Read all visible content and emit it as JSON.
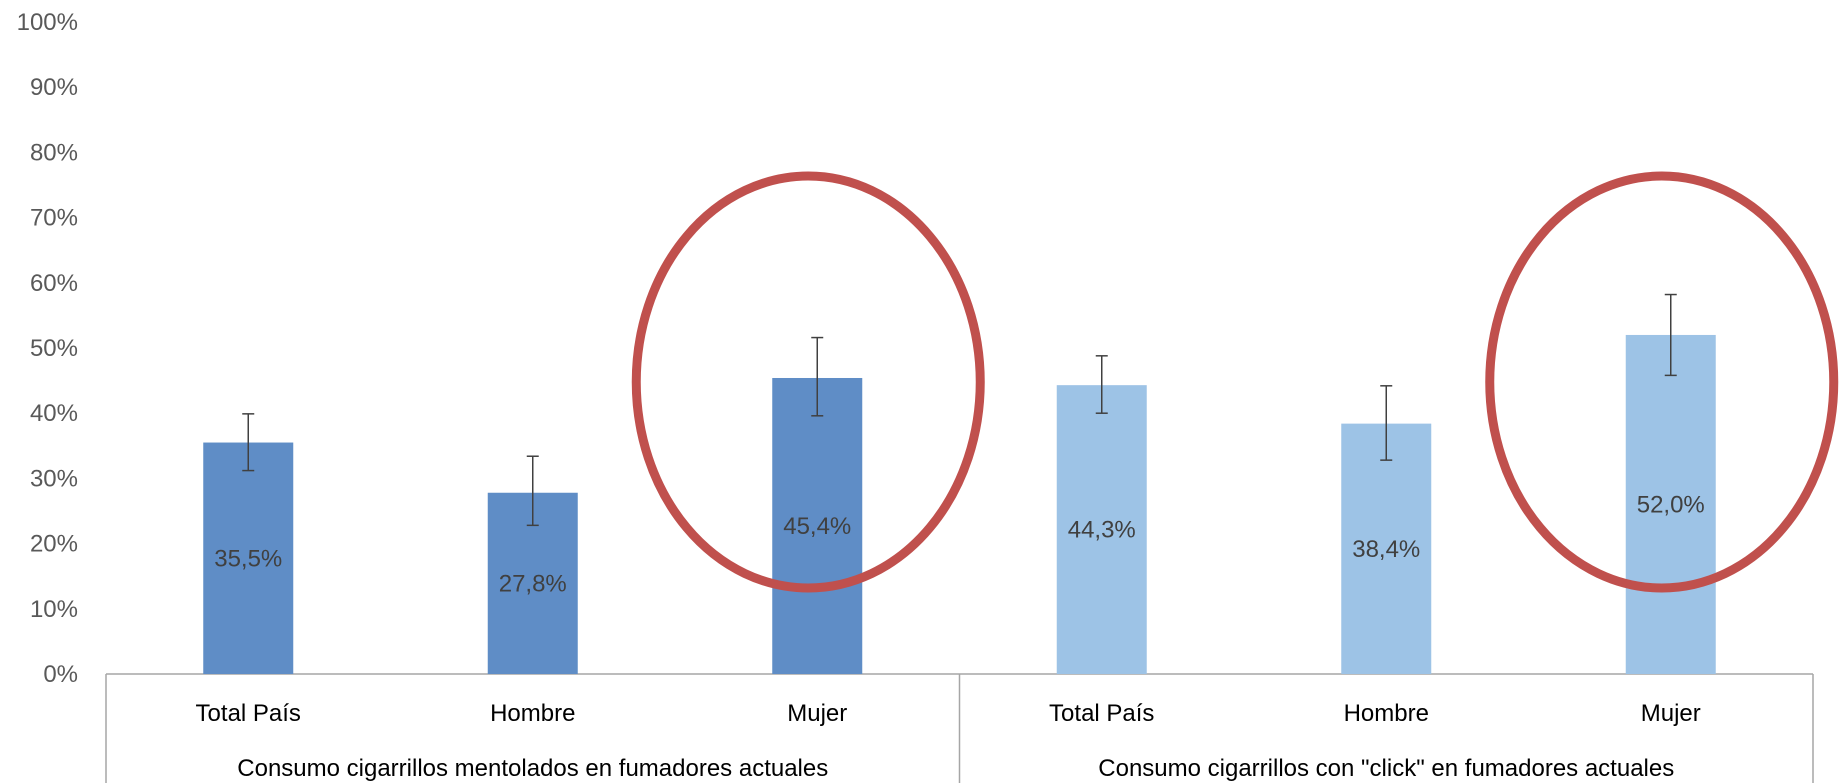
{
  "chart_data": {
    "type": "bar",
    "ylim": [
      0,
      100
    ],
    "y_ticks": [
      "0%",
      "10%",
      "20%",
      "30%",
      "40%",
      "50%",
      "60%",
      "70%",
      "80%",
      "90%",
      "100%"
    ],
    "groups": [
      {
        "label": "Consumo cigarrillos mentolados en fumadores actuales",
        "color": "#5F8DC6",
        "categories": [
          "Total País",
          "Hombre",
          "Mujer"
        ],
        "values": [
          35.5,
          27.8,
          45.4
        ],
        "value_labels": [
          "35,5%",
          "27,8%",
          "45,4%"
        ],
        "error_low": [
          31.2,
          22.8,
          39.6
        ],
        "error_high": [
          39.9,
          33.4,
          51.6
        ]
      },
      {
        "label": "Consumo cigarrillos con \"click\" en fumadores actuales",
        "color": "#9DC3E6",
        "categories": [
          "Total País",
          "Hombre",
          "Mujer"
        ],
        "values": [
          44.3,
          38.4,
          52.0
        ],
        "value_labels": [
          "44,3%",
          "38,4%",
          "52,0%"
        ],
        "error_low": [
          40.0,
          32.8,
          45.8
        ],
        "error_high": [
          48.8,
          44.2,
          58.2
        ]
      }
    ],
    "highlight_color": "#C0504D",
    "highlights": [
      {
        "group": 0,
        "category": 2
      },
      {
        "group": 1,
        "category": 2
      }
    ]
  }
}
